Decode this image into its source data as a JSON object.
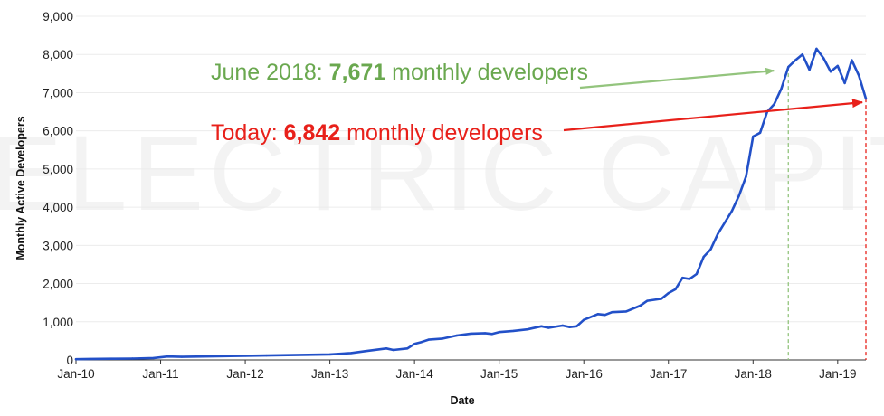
{
  "chart_data": {
    "type": "line",
    "title": "",
    "xlabel": "Date",
    "ylabel": "Monthly Active Developers",
    "ylim": [
      0,
      9000
    ],
    "yticks": [
      0,
      1000,
      2000,
      3000,
      4000,
      5000,
      6000,
      7000,
      8000,
      9000
    ],
    "ytick_labels": [
      "0",
      "1,000",
      "2,000",
      "3,000",
      "4,000",
      "5,000",
      "6,000",
      "7,000",
      "8,000",
      "9,000"
    ],
    "xlim": [
      "2010-01",
      "2019-05"
    ],
    "xticks": [
      "2010-01",
      "2011-01",
      "2012-01",
      "2013-01",
      "2014-01",
      "2015-01",
      "2016-01",
      "2017-01",
      "2018-01",
      "2019-01"
    ],
    "xtick_labels": [
      "Jan-10",
      "Jan-11",
      "Jan-12",
      "Jan-13",
      "Jan-14",
      "Jan-15",
      "Jan-16",
      "Jan-17",
      "Jan-18",
      "Jan-19"
    ],
    "grid": "horizontal",
    "line_color": "#2250c8",
    "watermark": "ELECTRIC CAPITAL",
    "series": [
      {
        "points": [
          [
            "2010-01",
            20
          ],
          [
            "2010-03",
            25
          ],
          [
            "2010-06",
            30
          ],
          [
            "2010-09",
            35
          ],
          [
            "2010-12",
            50
          ],
          [
            "2011-02",
            90
          ],
          [
            "2011-04",
            80
          ],
          [
            "2011-07",
            90
          ],
          [
            "2011-10",
            100
          ],
          [
            "2012-01",
            110
          ],
          [
            "2012-04",
            115
          ],
          [
            "2012-07",
            125
          ],
          [
            "2012-10",
            135
          ],
          [
            "2013-01",
            145
          ],
          [
            "2013-04",
            180
          ],
          [
            "2013-06",
            230
          ],
          [
            "2013-09",
            300
          ],
          [
            "2013-10",
            260
          ],
          [
            "2013-12",
            300
          ],
          [
            "2014-01",
            420
          ],
          [
            "2014-02",
            470
          ],
          [
            "2014-03",
            530
          ],
          [
            "2014-05",
            560
          ],
          [
            "2014-07",
            640
          ],
          [
            "2014-09",
            690
          ],
          [
            "2014-11",
            700
          ],
          [
            "2014-12",
            680
          ],
          [
            "2015-01",
            730
          ],
          [
            "2015-03",
            760
          ],
          [
            "2015-05",
            800
          ],
          [
            "2015-07",
            880
          ],
          [
            "2015-08",
            840
          ],
          [
            "2015-10",
            900
          ],
          [
            "2015-11",
            860
          ],
          [
            "2015-12",
            880
          ],
          [
            "2016-01",
            1050
          ],
          [
            "2016-03",
            1200
          ],
          [
            "2016-04",
            1180
          ],
          [
            "2016-05",
            1250
          ],
          [
            "2016-07",
            1270
          ],
          [
            "2016-09",
            1420
          ],
          [
            "2016-10",
            1550
          ],
          [
            "2016-12",
            1600
          ],
          [
            "2017-01",
            1750
          ],
          [
            "2017-02",
            1850
          ],
          [
            "2017-03",
            2150
          ],
          [
            "2017-04",
            2120
          ],
          [
            "2017-05",
            2250
          ],
          [
            "2017-06",
            2700
          ],
          [
            "2017-07",
            2900
          ],
          [
            "2017-08",
            3300
          ],
          [
            "2017-09",
            3600
          ],
          [
            "2017-10",
            3900
          ],
          [
            "2017-11",
            4300
          ],
          [
            "2017-12",
            4800
          ],
          [
            "2018-01",
            5850
          ],
          [
            "2018-02",
            5950
          ],
          [
            "2018-03",
            6500
          ],
          [
            "2018-04",
            6700
          ],
          [
            "2018-05",
            7100
          ],
          [
            "2018-06",
            7671
          ],
          [
            "2018-07",
            7850
          ],
          [
            "2018-08",
            8000
          ],
          [
            "2018-09",
            7600
          ],
          [
            "2018-10",
            8150
          ],
          [
            "2018-11",
            7900
          ],
          [
            "2018-12",
            7550
          ],
          [
            "2019-01",
            7700
          ],
          [
            "2019-02",
            7250
          ],
          [
            "2019-03",
            7850
          ],
          [
            "2019-04",
            7450
          ],
          [
            "2019-05",
            6842
          ]
        ]
      }
    ],
    "annotations": [
      {
        "prefix": "June 2018: ",
        "value": "7,671",
        "suffix": " monthly developers",
        "color": "#6aa84f",
        "arrow_color": "#93c47d",
        "point": [
          "2018-06",
          7671
        ]
      },
      {
        "prefix": "Today: ",
        "value": "6,842",
        "suffix": " monthly developers",
        "color": "#e8201a",
        "arrow_color": "#e8201a",
        "point": [
          "2019-05",
          6842
        ]
      }
    ]
  }
}
